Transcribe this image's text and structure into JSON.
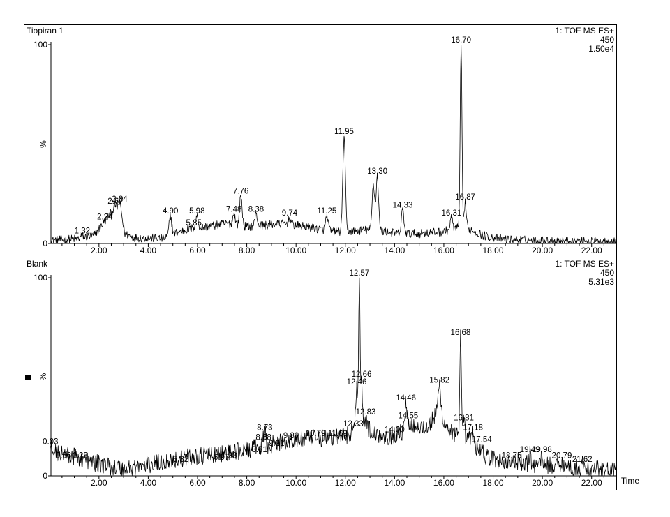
{
  "chart_data": [
    {
      "type": "line",
      "title": "Tiopiran 1",
      "header_right": [
        "1: TOF MS ES+",
        "450",
        "1.50e4"
      ],
      "ylabel": "%",
      "xlabel": "",
      "xlim": [
        0.05,
        23.0
      ],
      "ylim": [
        0,
        100
      ],
      "x_ticks": [
        "2.00",
        "4.00",
        "6.00",
        "8.00",
        "10.00",
        "12.00",
        "14.00",
        "16.00",
        "18.00",
        "20.00",
        "22.00"
      ],
      "y_ticks": [
        "0",
        "100"
      ],
      "grid": false,
      "baseline": [
        [
          0.05,
          1.5
        ],
        [
          1.2,
          2.5
        ],
        [
          1.8,
          4
        ],
        [
          2.1,
          9
        ],
        [
          2.4,
          14
        ],
        [
          2.65,
          18
        ],
        [
          2.9,
          14
        ],
        [
          3.05,
          5
        ],
        [
          3.4,
          3
        ],
        [
          4.6,
          2.5
        ],
        [
          5.0,
          5
        ],
        [
          5.6,
          7
        ],
        [
          6.4,
          8.5
        ],
        [
          7.2,
          10
        ],
        [
          8.0,
          8.5
        ],
        [
          9.5,
          10
        ],
        [
          10.6,
          8
        ],
        [
          11.0,
          7
        ],
        [
          11.7,
          6
        ],
        [
          12.6,
          6.5
        ],
        [
          13.0,
          7
        ],
        [
          13.6,
          6
        ],
        [
          14.1,
          5
        ],
        [
          15.0,
          5
        ],
        [
          16.0,
          6
        ],
        [
          16.6,
          8
        ],
        [
          17.1,
          7
        ],
        [
          17.6,
          4
        ],
        [
          18.5,
          2
        ],
        [
          20.0,
          1.5
        ],
        [
          23.0,
          1
        ]
      ],
      "peaks": [
        {
          "x": 1.32,
          "y": 4,
          "w": 0.05,
          "label": "1.32"
        },
        {
          "x": 2.24,
          "y": 11,
          "w": 0.06,
          "label": "2.24"
        },
        {
          "x": 2.67,
          "y": 19,
          "w": 0.06,
          "label": "2.67"
        },
        {
          "x": 2.84,
          "y": 20,
          "w": 0.06,
          "label": "2.84"
        },
        {
          "x": 4.9,
          "y": 14,
          "w": 0.05,
          "label": "4.90"
        },
        {
          "x": 5.85,
          "y": 8,
          "w": 0.05,
          "label": "5.85"
        },
        {
          "x": 5.98,
          "y": 14,
          "w": 0.05,
          "label": "5.98"
        },
        {
          "x": 7.48,
          "y": 15,
          "w": 0.05,
          "label": "7.48"
        },
        {
          "x": 7.76,
          "y": 24,
          "w": 0.05,
          "label": "7.76"
        },
        {
          "x": 8.38,
          "y": 15,
          "w": 0.05,
          "label": "8.38"
        },
        {
          "x": 9.74,
          "y": 13,
          "w": 0.05,
          "label": "9.74"
        },
        {
          "x": 11.25,
          "y": 14,
          "w": 0.05,
          "label": "11.25"
        },
        {
          "x": 11.95,
          "y": 54,
          "w": 0.05,
          "label": "11.95"
        },
        {
          "x": 13.14,
          "y": 30,
          "w": 0.05,
          "label": ""
        },
        {
          "x": 13.3,
          "y": 34,
          "w": 0.05,
          "label": "13.30"
        },
        {
          "x": 14.33,
          "y": 17,
          "w": 0.05,
          "label": "14.33"
        },
        {
          "x": 16.31,
          "y": 13,
          "w": 0.05,
          "label": "16.31"
        },
        {
          "x": 16.7,
          "y": 100,
          "w": 0.035,
          "label": "16.70"
        },
        {
          "x": 16.87,
          "y": 21,
          "w": 0.04,
          "label": "16.87"
        }
      ]
    },
    {
      "type": "line",
      "title": "Blank",
      "header_right": [
        "1: TOF MS ES+",
        "450",
        "5.31e3"
      ],
      "ylabel": "%",
      "xlabel": "Time",
      "xlim": [
        0.05,
        23.0
      ],
      "ylim": [
        0,
        100
      ],
      "x_ticks": [
        "2.00",
        "4.00",
        "6.00",
        "8.00",
        "10.00",
        "12.00",
        "14.00",
        "16.00",
        "18.00",
        "20.00",
        "22.00"
      ],
      "y_ticks": [
        "0",
        "100"
      ],
      "grid": false,
      "baseline": [
        [
          0.05,
          12
        ],
        [
          0.6,
          11
        ],
        [
          1.2,
          9
        ],
        [
          2.0,
          6
        ],
        [
          3.0,
          3.5
        ],
        [
          4.0,
          5.5
        ],
        [
          5.0,
          8
        ],
        [
          6.0,
          10
        ],
        [
          7.0,
          11
        ],
        [
          8.0,
          13
        ],
        [
          9.0,
          16
        ],
        [
          10.0,
          18
        ],
        [
          11.0,
          19
        ],
        [
          12.0,
          20
        ],
        [
          12.3,
          23
        ],
        [
          12.45,
          30
        ],
        [
          12.8,
          25
        ],
        [
          13.2,
          21
        ],
        [
          13.8,
          20
        ],
        [
          14.3,
          22
        ],
        [
          14.8,
          26
        ],
        [
          15.3,
          24
        ],
        [
          15.8,
          33
        ],
        [
          16.1,
          25
        ],
        [
          16.5,
          20
        ],
        [
          17.0,
          19
        ],
        [
          17.4,
          13
        ],
        [
          17.8,
          9
        ],
        [
          18.5,
          7
        ],
        [
          19.5,
          6
        ],
        [
          20.5,
          5
        ],
        [
          21.5,
          4
        ],
        [
          23.0,
          2.5
        ]
      ],
      "peaks": [
        {
          "x": 0.03,
          "y": 15,
          "w": 0.04,
          "label": "0.03"
        },
        {
          "x": 0.56,
          "y": 8,
          "w": 0.04,
          "label": "0.56"
        },
        {
          "x": 1.23,
          "y": 8,
          "w": 0.04,
          "label": "1.23"
        },
        {
          "x": 5.32,
          "y": 6,
          "w": 0.04,
          "label": "5.32"
        },
        {
          "x": 6.97,
          "y": 7,
          "w": 0.04,
          "label": "6.97"
        },
        {
          "x": 7.28,
          "y": 8,
          "w": 0.04,
          "label": "7.28"
        },
        {
          "x": 8.51,
          "y": 11,
          "w": 0.04,
          "label": "8.51"
        },
        {
          "x": 8.68,
          "y": 17,
          "w": 0.04,
          "label": "8.68"
        },
        {
          "x": 8.73,
          "y": 22,
          "w": 0.04,
          "label": "8.73"
        },
        {
          "x": 9.21,
          "y": 14,
          "w": 0.04,
          "label": "9.21"
        },
        {
          "x": 9.8,
          "y": 18,
          "w": 0.04,
          "label": "9.80"
        },
        {
          "x": 10.79,
          "y": 19,
          "w": 0.04,
          "label": "10.79"
        },
        {
          "x": 11.69,
          "y": 19,
          "w": 0.04,
          "label": "11.69"
        },
        {
          "x": 12.33,
          "y": 24,
          "w": 0.04,
          "label": "12.33"
        },
        {
          "x": 12.46,
          "y": 45,
          "w": 0.03,
          "label": "12.46"
        },
        {
          "x": 12.57,
          "y": 100,
          "w": 0.03,
          "label": "12.57"
        },
        {
          "x": 12.66,
          "y": 49,
          "w": 0.03,
          "label": "12.66"
        },
        {
          "x": 12.83,
          "y": 30,
          "w": 0.04,
          "label": "12.83"
        },
        {
          "x": 14.0,
          "y": 21,
          "w": 0.04,
          "label": "14.00"
        },
        {
          "x": 14.46,
          "y": 37,
          "w": 0.04,
          "label": "14.46"
        },
        {
          "x": 14.55,
          "y": 28,
          "w": 0.04,
          "label": "14.55"
        },
        {
          "x": 15.82,
          "y": 46,
          "w": 0.05,
          "label": "15.82"
        },
        {
          "x": 16.68,
          "y": 70,
          "w": 0.03,
          "label": "16.68"
        },
        {
          "x": 16.81,
          "y": 27,
          "w": 0.04,
          "label": "16.81"
        },
        {
          "x": 17.18,
          "y": 22,
          "w": 0.04,
          "label": "17.18"
        },
        {
          "x": 17.54,
          "y": 16,
          "w": 0.04,
          "label": "17.54"
        },
        {
          "x": 18.75,
          "y": 8,
          "w": 0.04,
          "label": "18.75"
        },
        {
          "x": 19.49,
          "y": 11,
          "w": 0.04,
          "label": "19.49"
        },
        {
          "x": 19.98,
          "y": 11,
          "w": 0.04,
          "label": "19.98"
        },
        {
          "x": 20.79,
          "y": 8,
          "w": 0.04,
          "label": "20.79"
        },
        {
          "x": 21.62,
          "y": 6,
          "w": 0.04,
          "label": "21.62"
        }
      ]
    }
  ]
}
